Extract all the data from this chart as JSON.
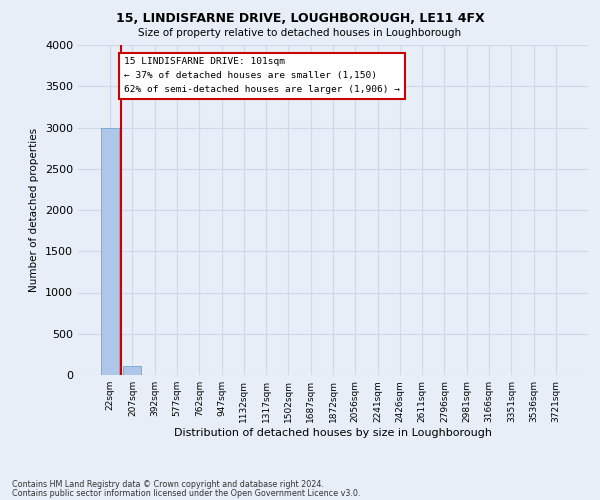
{
  "title": "15, LINDISFARNE DRIVE, LOUGHBOROUGH, LE11 4FX",
  "subtitle": "Size of property relative to detached houses in Loughborough",
  "xlabel": "Distribution of detached houses by size in Loughborough",
  "ylabel": "Number of detached properties",
  "footnote1": "Contains HM Land Registry data © Crown copyright and database right 2024.",
  "footnote2": "Contains public sector information licensed under the Open Government Licence v3.0.",
  "bar_labels": [
    "22sqm",
    "207sqm",
    "392sqm",
    "577sqm",
    "762sqm",
    "947sqm",
    "1132sqm",
    "1317sqm",
    "1502sqm",
    "1687sqm",
    "1872sqm",
    "2056sqm",
    "2241sqm",
    "2426sqm",
    "2611sqm",
    "2796sqm",
    "2981sqm",
    "3166sqm",
    "3351sqm",
    "3536sqm",
    "3721sqm"
  ],
  "bar_heights": [
    3000,
    110,
    5,
    2,
    1,
    1,
    1,
    0,
    0,
    0,
    0,
    0,
    0,
    0,
    0,
    0,
    0,
    0,
    0,
    0,
    0
  ],
  "bar_color": "#aec6e8",
  "bar_edge_color": "#5a9fd4",
  "ylim": [
    0,
    4000
  ],
  "yticks": [
    0,
    500,
    1000,
    1500,
    2000,
    2500,
    3000,
    3500,
    4000
  ],
  "annotation_title": "15 LINDISFARNE DRIVE: 101sqm",
  "annotation_line1": "← 37% of detached houses are smaller (1,150)",
  "annotation_line2": "62% of semi-detached houses are larger (1,906) →",
  "annotation_box_color": "#ffffff",
  "annotation_border_color": "#cc0000",
  "vline_color": "#cc0000",
  "grid_color": "#d0d8e8",
  "background_color": "#e8eef8"
}
